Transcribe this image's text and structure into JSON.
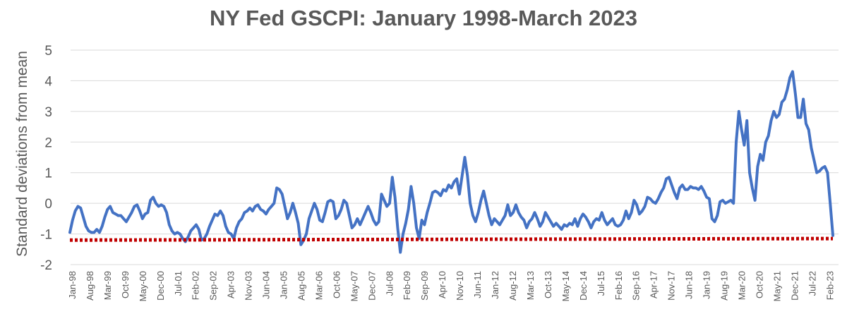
{
  "chart_data": {
    "type": "line",
    "title": "NY Fed GSCPI: January 1998-March 2023",
    "xlabel": "",
    "ylabel": "Standard deviations from mean",
    "ylim": [
      -2,
      5
    ],
    "yticks": [
      -2,
      -1,
      0,
      1,
      2,
      3,
      4,
      5
    ],
    "grid": "horizontal",
    "legend": "none",
    "colors": {
      "series": "#4472C4",
      "threshold": "#C00000",
      "grid": "#D9D9D9",
      "text": "#595959"
    },
    "x_tick_labels": [
      "Jan-98",
      "Aug-98",
      "Mar-99",
      "Oct-99",
      "May-00",
      "Dec-00",
      "Jul-01",
      "Feb-02",
      "Sep-02",
      "Apr-03",
      "Nov-03",
      "Jun-04",
      "Jan-05",
      "Aug-05",
      "Mar-06",
      "Oct-06",
      "May-07",
      "Dec-07",
      "Jul-08",
      "Feb-09",
      "Sep-09",
      "Apr-10",
      "Nov-10",
      "Jun-11",
      "Jan-12",
      "Aug-12",
      "Mar-13",
      "Oct-13",
      "May-14",
      "Dec-14",
      "Jul-15",
      "Feb-16",
      "Sep-16",
      "Apr-17",
      "Nov-17",
      "Jun-18",
      "Jan-19",
      "Aug-19",
      "Mar-20",
      "Oct-20",
      "May-21",
      "Dec-21",
      "Jul-22",
      "Feb-23"
    ],
    "x_start": "Jan-98",
    "x_end": "Mar-23",
    "series": [
      {
        "style": "solid",
        "values": [
          -0.95,
          -0.55,
          -0.25,
          -0.1,
          -0.15,
          -0.45,
          -0.75,
          -0.9,
          -0.95,
          -0.95,
          -0.85,
          -0.95,
          -0.75,
          -0.45,
          -0.2,
          -0.1,
          -0.3,
          -0.35,
          -0.4,
          -0.4,
          -0.5,
          -0.6,
          -0.45,
          -0.3,
          -0.1,
          -0.05,
          -0.25,
          -0.5,
          -0.35,
          -0.3,
          0.1,
          0.2,
          0.0,
          -0.1,
          -0.05,
          -0.1,
          -0.3,
          -0.7,
          -0.9,
          -1.0,
          -0.95,
          -1.0,
          -1.15,
          -1.25,
          -1.1,
          -0.9,
          -0.8,
          -0.7,
          -0.85,
          -1.2,
          -1.15,
          -1.0,
          -0.75,
          -0.55,
          -0.35,
          -0.4,
          -0.25,
          -0.4,
          -0.75,
          -0.95,
          -1.0,
          -1.15,
          -0.8,
          -0.6,
          -0.5,
          -0.3,
          -0.25,
          -0.15,
          -0.25,
          -0.1,
          -0.05,
          -0.2,
          -0.25,
          -0.35,
          -0.2,
          -0.1,
          0.0,
          0.5,
          0.45,
          0.3,
          -0.1,
          -0.5,
          -0.3,
          0.0,
          -0.3,
          -0.65,
          -1.35,
          -1.2,
          -1.0,
          -0.5,
          -0.25,
          0.0,
          -0.2,
          -0.55,
          -0.6,
          -0.3,
          0.05,
          0.1,
          0.05,
          -0.5,
          -0.4,
          -0.2,
          0.1,
          0.0,
          -0.4,
          -0.8,
          -0.7,
          -0.5,
          -0.7,
          -0.5,
          -0.3,
          -0.1,
          -0.3,
          -0.55,
          -0.7,
          -0.6,
          0.3,
          0.1,
          -0.1,
          0.0,
          0.85,
          0.2,
          -0.8,
          -1.6,
          -1.0,
          -0.65,
          -0.2,
          0.55,
          0.0,
          -0.8,
          -1.15,
          -0.55,
          -0.7,
          -0.3,
          0.0,
          0.35,
          0.4,
          0.35,
          0.25,
          0.45,
          0.4,
          0.6,
          0.5,
          0.7,
          0.8,
          0.3,
          0.9,
          1.5,
          0.9,
          0.0,
          -0.4,
          -0.6,
          -0.3,
          0.1,
          0.4,
          0.0,
          -0.4,
          -0.7,
          -0.5,
          -0.6,
          -0.7,
          -0.55,
          -0.4,
          -0.05,
          -0.4,
          -0.3,
          -0.05,
          -0.3,
          -0.45,
          -0.55,
          -0.8,
          -0.6,
          -0.5,
          -0.3,
          -0.5,
          -0.75,
          -0.6,
          -0.3,
          -0.45,
          -0.6,
          -0.75,
          -0.65,
          -0.75,
          -0.85,
          -0.7,
          -0.75,
          -0.65,
          -0.7,
          -0.5,
          -0.75,
          -0.5,
          -0.35,
          -0.45,
          -0.6,
          -0.8,
          -0.6,
          -0.5,
          -0.55,
          -0.3,
          -0.55,
          -0.7,
          -0.6,
          -0.5,
          -0.7,
          -0.75,
          -0.7,
          -0.55,
          -0.25,
          -0.5,
          -0.3,
          0.1,
          -0.05,
          -0.35,
          -0.25,
          -0.1,
          0.2,
          0.15,
          0.05,
          0.0,
          0.15,
          0.35,
          0.5,
          0.8,
          0.85,
          0.6,
          0.35,
          0.15,
          0.5,
          0.6,
          0.45,
          0.45,
          0.55,
          0.5,
          0.5,
          0.45,
          0.55,
          0.4,
          0.2,
          0.15,
          -0.5,
          -0.6,
          -0.4,
          0.05,
          0.1,
          0.0,
          0.05,
          0.1,
          0.0,
          2.0,
          3.0,
          2.4,
          1.9,
          2.7,
          1.0,
          0.5,
          0.1,
          1.2,
          1.6,
          1.4,
          2.0,
          2.2,
          2.7,
          3.0,
          2.8,
          2.9,
          3.3,
          3.4,
          3.7,
          4.1,
          4.3,
          3.6,
          2.8,
          2.8,
          3.4,
          2.6,
          2.4,
          1.8,
          1.4,
          1.0,
          1.05,
          1.15,
          1.2,
          1.0,
          0.0,
          -1.05
        ]
      },
      {
        "style": "dotted",
        "values": [
          -1.2,
          -1.15
        ]
      }
    ]
  }
}
